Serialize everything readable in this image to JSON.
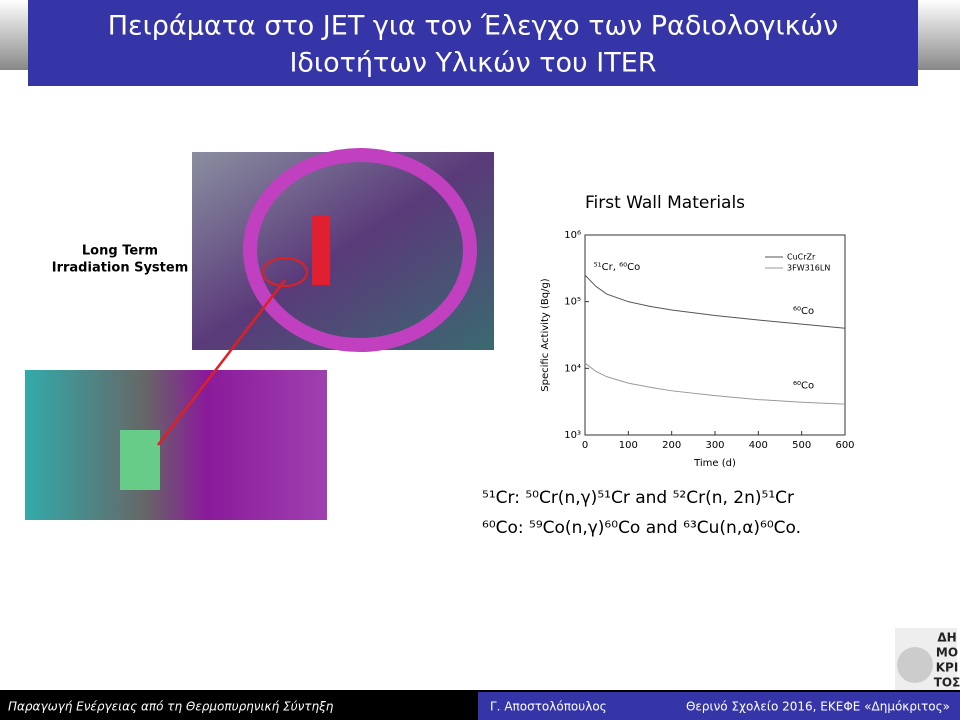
{
  "header": {
    "title_line1": "Πειράματα στο JET για τον Έλεγχο των Ραδιολογικών",
    "title_line2": "Ιδιοτήτων Υλικών του ITER"
  },
  "figure": {
    "label_line1": "Long Term",
    "label_line2": "Irradiation System"
  },
  "chart": {
    "type": "line",
    "title": "First Wall Materials",
    "xlabel": "Time (d)",
    "ylabel": "Specific Activity (Bq/g)",
    "x": [
      0,
      25,
      50,
      100,
      150,
      200,
      300,
      400,
      500,
      600
    ],
    "series": [
      {
        "name": "CuCrZr",
        "color": "#555555",
        "values": [
          250000,
          170000,
          130000,
          100000,
          85000,
          75000,
          62000,
          53000,
          46000,
          40000
        ]
      },
      {
        "name": "3FW316LN",
        "color": "#999999",
        "values": [
          12000,
          9000,
          7500,
          6000,
          5200,
          4600,
          3900,
          3400,
          3100,
          2900
        ]
      }
    ],
    "xlim": [
      0,
      600
    ],
    "xticks": [
      0,
      100,
      200,
      300,
      400,
      500,
      600
    ],
    "ylim": [
      1000,
      1000000
    ],
    "log_y": true,
    "yticks": [
      {
        "value": 1000,
        "label": "10³"
      },
      {
        "value": 10000,
        "label": "10⁴"
      },
      {
        "value": 100000,
        "label": "10⁵"
      },
      {
        "value": 1000000,
        "label": "10⁶"
      }
    ],
    "legend": "top-right",
    "annotations": [
      {
        "text": "⁵¹Cr, ⁶⁰Co",
        "x": 20,
        "y": 250000
      },
      {
        "text": "⁶⁰Co",
        "x": 480,
        "y": 55000
      },
      {
        "text": "⁶⁰Co",
        "x": 480,
        "y": 4200
      }
    ]
  },
  "reactions": [
    "⁵¹Cr: ⁵⁰Cr(n,γ)⁵¹Cr and ⁵²Cr(n, 2n)⁵¹Cr",
    "⁶⁰Co: ⁵⁹Co(n,γ)⁶⁰Co and ⁶³Cu(n,α)⁶⁰Co."
  ],
  "logo": [
    "ΔΗ",
    "ΜΟ",
    "ΚΡΙ",
    "ΤΟΣ"
  ],
  "footer": {
    "left": "Παραγωγή Ενέργειας από τη Θερμοπυρηνική Σύντηξη",
    "center": "Γ. Αποστολόπουλος",
    "right": "Θερινό Σχολείο 2016, ΕΚΕΦΕ «Δημόκριτος»"
  }
}
